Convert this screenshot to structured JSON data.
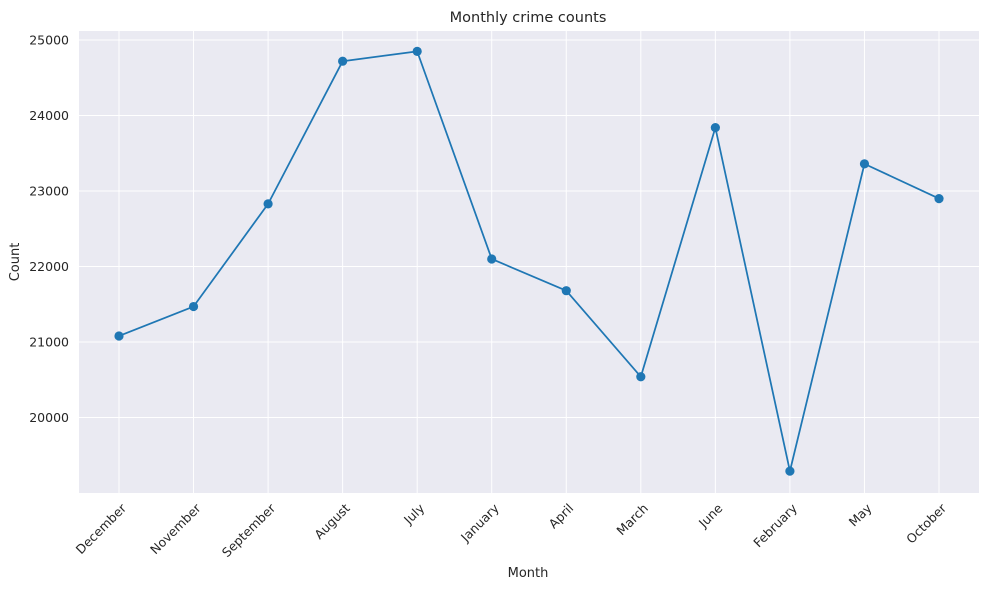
{
  "chart_data": {
    "type": "line",
    "title": "Monthly crime counts",
    "xlabel": "Month",
    "ylabel": "Count",
    "categories": [
      "December",
      "November",
      "September",
      "August",
      "July",
      "January",
      "April",
      "March",
      "June",
      "February",
      "May",
      "October"
    ],
    "series": [
      {
        "values": [
          21080,
          21470,
          22830,
          24720,
          24850,
          22100,
          21680,
          20540,
          23840,
          19290,
          23360,
          22900
        ]
      }
    ],
    "yticks": [
      20000,
      21000,
      22000,
      23000,
      24000,
      25000
    ],
    "ylim": [
      19000,
      25120
    ],
    "grid": true,
    "legend": "none",
    "colors": {
      "background": "#eaeaf2",
      "grid": "#ffffff",
      "line": "#1f77b4",
      "marker": "#1f77b4"
    }
  }
}
